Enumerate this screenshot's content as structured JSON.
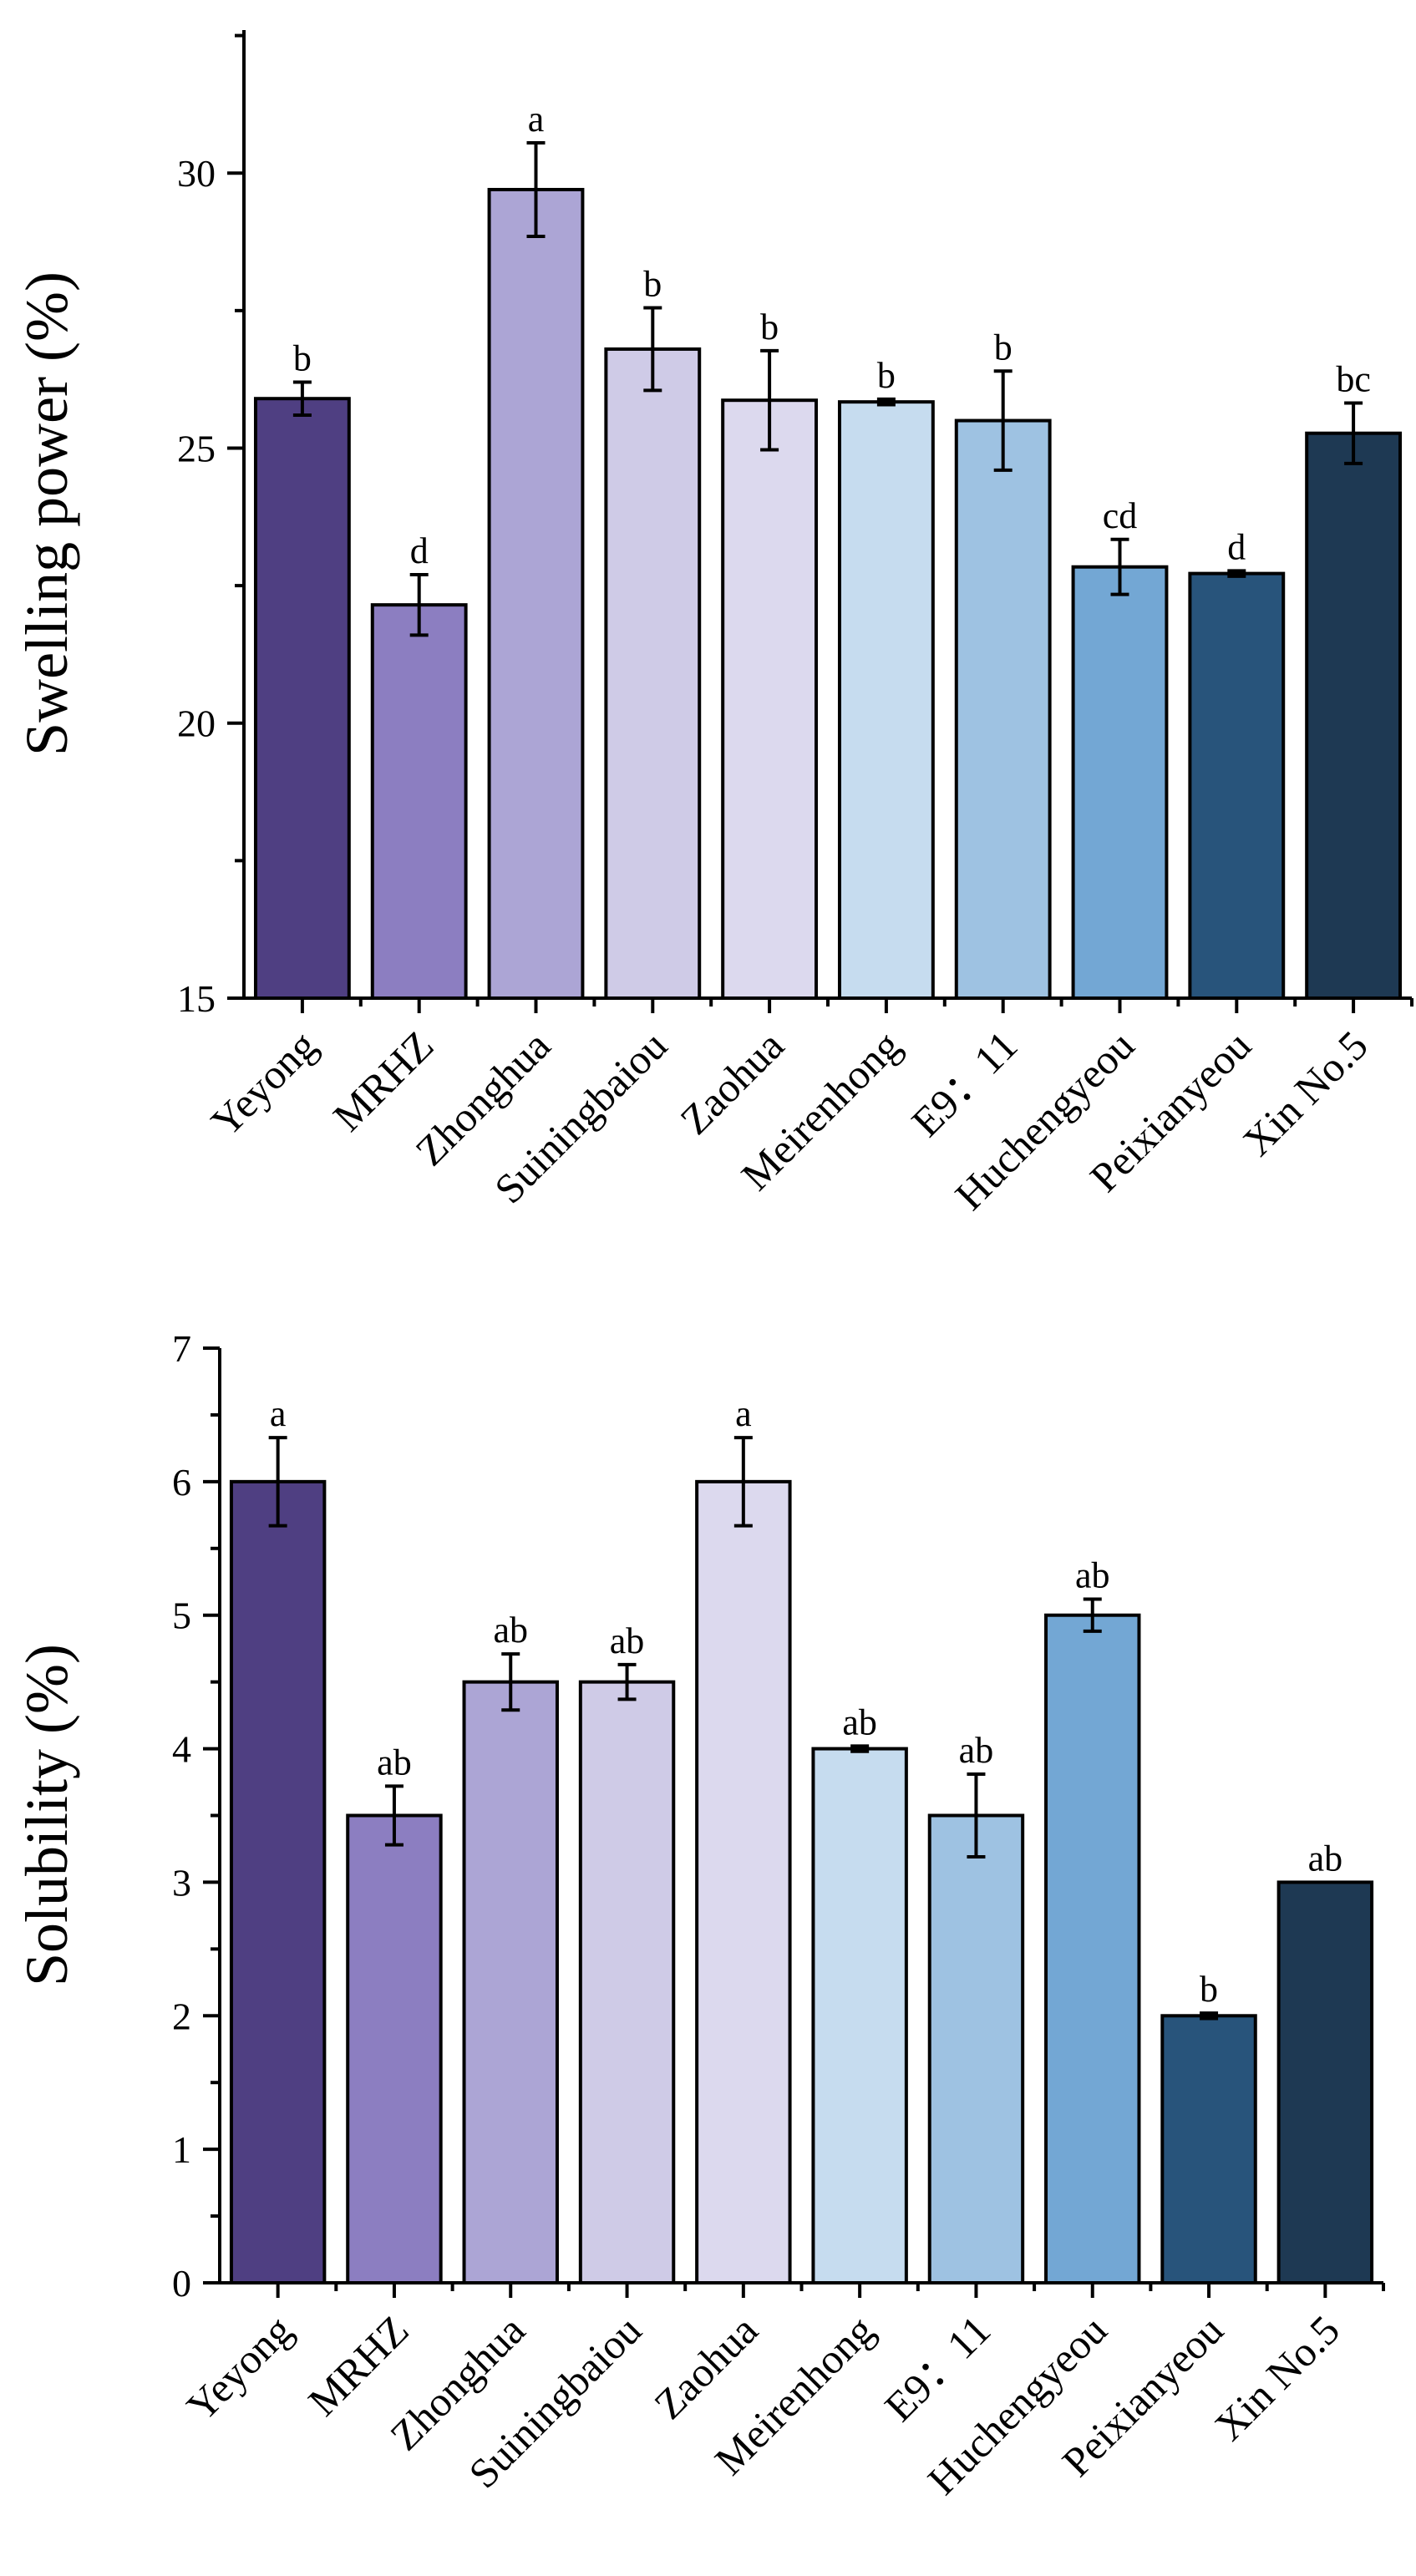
{
  "chart_data": [
    {
      "type": "bar",
      "title": "",
      "xlabel": "",
      "ylabel": "Swelling power (%)",
      "ylim": [
        15,
        32.6
      ],
      "yticks": [
        15,
        20,
        25,
        30
      ],
      "grid": false,
      "categories": [
        "Yeyong",
        "MRHZ",
        "Zhonghua",
        "Suiningbaiou",
        "Zaohua",
        "Meirenhong",
        "E9：11",
        "Huchengyeou",
        "Peixianyeou",
        "Xin No.5"
      ],
      "values": [
        25.9,
        22.15,
        29.7,
        26.8,
        25.87,
        25.84,
        25.5,
        22.84,
        22.72,
        25.27
      ],
      "errors": [
        0.3,
        0.55,
        0.85,
        0.75,
        0.9,
        0.05,
        0.9,
        0.5,
        0.05,
        0.55
      ],
      "letters": [
        "b",
        "d",
        "a",
        "b",
        "b",
        "b",
        "b",
        "cd",
        "d",
        "bc"
      ]
    },
    {
      "type": "bar",
      "title": "",
      "xlabel": "",
      "ylabel": "Solubility (%)",
      "ylim": [
        0,
        7
      ],
      "yticks": [
        0,
        1,
        2,
        3,
        4,
        5,
        6,
        7
      ],
      "grid": false,
      "categories": [
        "Yeyong",
        "MRHZ",
        "Zhonghua",
        "Suiningbaiou",
        "Zaohua",
        "Meirenhong",
        "E9：11",
        "Huchengyeou",
        "Peixianyeou",
        "Xin No.5"
      ],
      "values": [
        6.0,
        3.5,
        4.5,
        4.5,
        6.0,
        4.0,
        3.5,
        5.0,
        2.0,
        3.0
      ],
      "errors": [
        0.33,
        0.22,
        0.21,
        0.13,
        0.33,
        0.02,
        0.31,
        0.12,
        0.02,
        0.0
      ],
      "letters": [
        "a",
        "ab",
        "ab",
        "ab",
        "a",
        "ab",
        "ab",
        "ab",
        "b",
        "ab"
      ]
    }
  ],
  "colors": [
    "#4f3f82",
    "#8c7ec1",
    "#aca5d5",
    "#cfcbe7",
    "#dcd9ee",
    "#c6dcef",
    "#9ec2e2",
    "#73a7d4",
    "#28547b",
    "#1e3953"
  ]
}
